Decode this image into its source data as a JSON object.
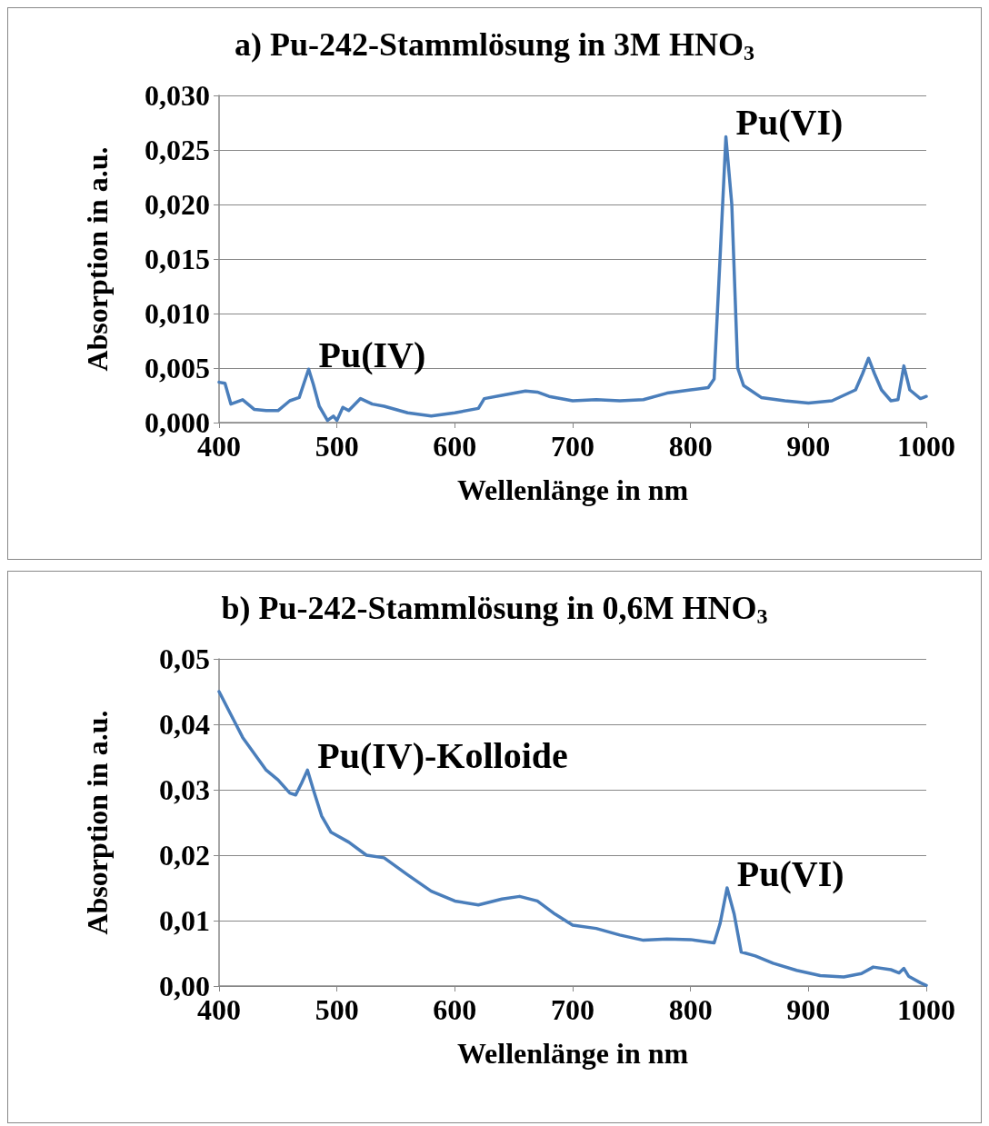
{
  "chart_data": [
    {
      "type": "line",
      "title": "a) Pu-242-Stammlösung in 3M HNO$_{3}$",
      "xlabel": "Wellenlänge in nm",
      "ylabel": "Absorption in a.u.",
      "grid": "y",
      "marker": "none",
      "line_style": "solid",
      "xlim": [
        400,
        1000
      ],
      "xticks": [
        400,
        500,
        600,
        700,
        800,
        900,
        1000
      ],
      "ylim": [
        0,
        0.03
      ],
      "yticks": [
        {
          "value": 0,
          "label": "0,000"
        },
        {
          "value": 0.005,
          "label": "0,005"
        },
        {
          "value": 0.01,
          "label": "0,010"
        },
        {
          "value": 0.015,
          "label": "0,015"
        },
        {
          "value": 0.02,
          "label": "0,020"
        },
        {
          "value": 0.025,
          "label": "0,025"
        },
        {
          "value": 0.03,
          "label": "0,030"
        }
      ],
      "annotations": [
        {
          "text": "Pu(IV)",
          "x": 476,
          "y": 0.0049
        },
        {
          "text": "Pu(VI)",
          "x": 830,
          "y": 0.0262
        }
      ],
      "series": [
        {
          "color": "#4a7ebb",
          "x": [
            400,
            405,
            410,
            420,
            430,
            440,
            450,
            460,
            468,
            472,
            476,
            480,
            485,
            492,
            497,
            500,
            505,
            510,
            520,
            530,
            540,
            560,
            580,
            600,
            620,
            625,
            640,
            660,
            670,
            680,
            700,
            720,
            740,
            760,
            780,
            800,
            815,
            820,
            825,
            830,
            835,
            840,
            845,
            860,
            880,
            900,
            920,
            940,
            946,
            951,
            956,
            962,
            970,
            976,
            981,
            986,
            995,
            1000
          ],
          "values": [
            0.0037,
            0.0036,
            0.0017,
            0.0021,
            0.0012,
            0.0011,
            0.0011,
            0.002,
            0.0023,
            0.0036,
            0.0049,
            0.0035,
            0.0015,
            0.0002,
            0.0006,
            0.0002,
            0.0014,
            0.0011,
            0.0022,
            0.0017,
            0.0015,
            0.0009,
            0.0006,
            0.0009,
            0.0013,
            0.0022,
            0.0025,
            0.0029,
            0.0028,
            0.0024,
            0.002,
            0.0021,
            0.002,
            0.0021,
            0.0027,
            0.003,
            0.0032,
            0.004,
            0.015,
            0.0262,
            0.02,
            0.005,
            0.0034,
            0.0023,
            0.002,
            0.0018,
            0.002,
            0.003,
            0.0045,
            0.0059,
            0.0045,
            0.003,
            0.002,
            0.0021,
            0.0052,
            0.003,
            0.0022,
            0.0024
          ]
        }
      ]
    },
    {
      "type": "line",
      "title": "b) Pu-242-Stammlösung in 0,6M HNO$_{3}$",
      "xlabel": "Wellenlänge in nm",
      "ylabel": "Absorption in a.u.",
      "grid": "y",
      "marker": "none",
      "line_style": "solid",
      "xlim": [
        400,
        1000
      ],
      "xticks": [
        400,
        500,
        600,
        700,
        800,
        900,
        1000
      ],
      "ylim": [
        0,
        0.05
      ],
      "yticks": [
        {
          "value": 0,
          "label": "0,00"
        },
        {
          "value": 0.01,
          "label": "0,01"
        },
        {
          "value": 0.02,
          "label": "0,02"
        },
        {
          "value": 0.03,
          "label": "0,03"
        },
        {
          "value": 0.04,
          "label": "0,04"
        },
        {
          "value": 0.05,
          "label": "0,05"
        }
      ],
      "annotations": [
        {
          "text": "Pu(IV)-Kolloide",
          "x": 475,
          "y": 0.033
        },
        {
          "text": "Pu(VI)",
          "x": 831,
          "y": 0.015
        }
      ],
      "series": [
        {
          "color": "#4a7ebb",
          "x": [
            400,
            410,
            420,
            430,
            440,
            450,
            460,
            465,
            470,
            475,
            480,
            487,
            495,
            510,
            525,
            540,
            560,
            580,
            600,
            620,
            640,
            655,
            670,
            685,
            700,
            720,
            740,
            760,
            780,
            800,
            820,
            825,
            831,
            837,
            843,
            855,
            870,
            890,
            910,
            930,
            945,
            955,
            970,
            977,
            981,
            985,
            995,
            1000
          ],
          "values": [
            0.045,
            0.0415,
            0.038,
            0.0355,
            0.033,
            0.0315,
            0.0295,
            0.0292,
            0.031,
            0.033,
            0.03,
            0.026,
            0.0235,
            0.022,
            0.02,
            0.0196,
            0.017,
            0.0145,
            0.013,
            0.0124,
            0.0133,
            0.0137,
            0.013,
            0.011,
            0.0093,
            0.0088,
            0.0078,
            0.007,
            0.0072,
            0.0071,
            0.0066,
            0.0095,
            0.015,
            0.011,
            0.0052,
            0.0046,
            0.0035,
            0.0024,
            0.0016,
            0.0014,
            0.0019,
            0.0029,
            0.0025,
            0.002,
            0.0027,
            0.0015,
            0.0005,
            0.0001
          ]
        }
      ]
    }
  ]
}
